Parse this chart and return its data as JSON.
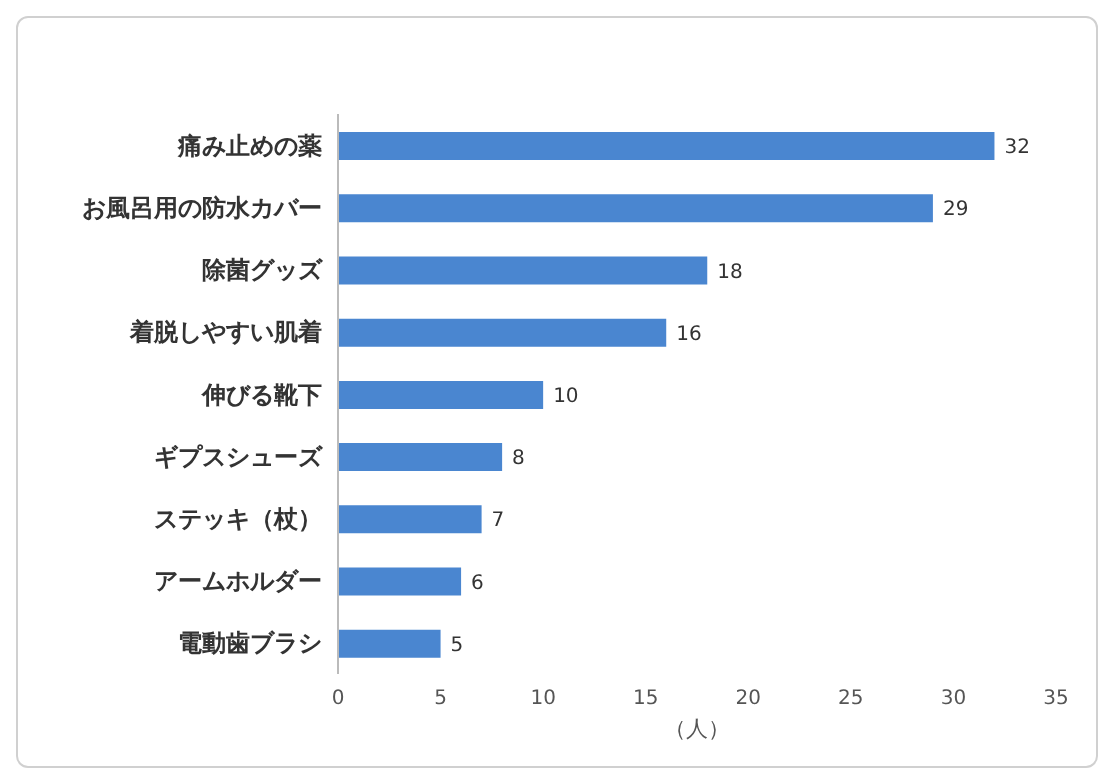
{
  "chart_data": {
    "type": "bar",
    "orientation": "horizontal",
    "xlabel": "（人）",
    "categories": [
      "痛み止めの薬",
      "お風呂用の防水カバー",
      "除菌グッズ",
      "着脱しやすい肌着",
      "伸びる靴下",
      "ギプスシューズ",
      "ステッキ（杖）",
      "アームホルダー",
      "電動歯ブラシ"
    ],
    "values": [
      32,
      29,
      18,
      16,
      10,
      8,
      7,
      6,
      5
    ],
    "color": "#4a86d0",
    "xlim": [
      0,
      35
    ],
    "xticks": [
      0,
      5,
      10,
      15,
      20,
      25,
      30,
      35
    ],
    "data_labels": true,
    "grid": false,
    "legend": false
  }
}
